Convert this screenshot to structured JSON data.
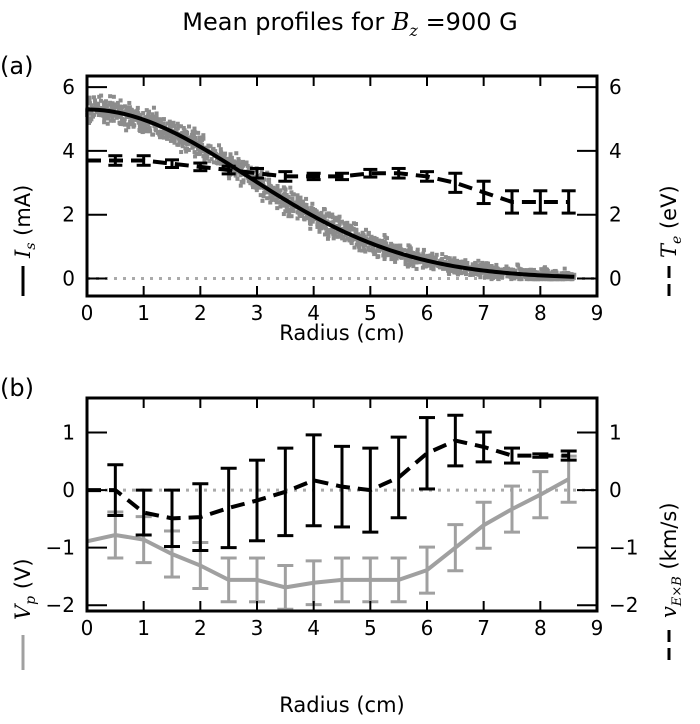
{
  "title": "Mean profiles for B_z = 900 G",
  "title_parts": {
    "prefix": "Mean profiles for ",
    "B": "B",
    "sub": "z",
    "suffix": " =900 G"
  },
  "chart_data": [
    {
      "panel_label": "(a)",
      "type": "scatter+line+errorbar",
      "xlabel": "Radius (cm)",
      "xlim": [
        0,
        9
      ],
      "xticks": [
        0,
        1,
        2,
        3,
        4,
        5,
        6,
        7,
        8,
        9
      ],
      "ylabel_left": {
        "sym": "I",
        "sub": "s",
        "unit": " (mA)"
      },
      "ylabel_right": {
        "sym": "T",
        "sub": "e",
        "unit": " (eV)"
      },
      "ylim": [
        -0.55,
        6.35
      ],
      "yticks": [
        0,
        2,
        4,
        6
      ],
      "y2ticks": [
        0,
        2,
        4,
        6
      ],
      "colors": {
        "scatter": "#8c8c8c",
        "fit": "#000000",
        "Te": "#000000",
        "zero": "#aaaaaa"
      },
      "Is_fit": {
        "amplitude": 5.3,
        "width_cm": 4.0,
        "r_max": 8.6
      },
      "Is_scatter": {
        "r_max": 8.6,
        "spread_mA": 0.32,
        "n_points": 1800
      },
      "Te": {
        "x": [
          0,
          0.5,
          1,
          1.5,
          2,
          2.5,
          3,
          3.5,
          4,
          4.5,
          5,
          5.5,
          6,
          6.5,
          7,
          7.5,
          8,
          8.5
        ],
        "y": [
          3.7,
          3.7,
          3.7,
          3.6,
          3.5,
          3.4,
          3.3,
          3.2,
          3.2,
          3.2,
          3.3,
          3.3,
          3.2,
          3.0,
          2.7,
          2.4,
          2.4,
          2.4
        ],
        "err": [
          0,
          0.15,
          0.15,
          0.12,
          0.12,
          0.12,
          0.15,
          0.15,
          0.1,
          0.1,
          0.12,
          0.15,
          0.15,
          0.3,
          0.35,
          0.35,
          0.35,
          0.35
        ]
      }
    },
    {
      "panel_label": "(b)",
      "type": "line+errorbar",
      "xlabel": "Radius (cm)",
      "xlim": [
        0,
        9
      ],
      "xticks": [
        0,
        1,
        2,
        3,
        4,
        5,
        6,
        7,
        8,
        9
      ],
      "ylabel_left": {
        "sym": "V",
        "sub": "p",
        "unit": " (V)"
      },
      "ylabel_right": {
        "sym": "v",
        "sub": "E×B",
        "unit": " (km/s)"
      },
      "ylim": [
        -2.1,
        1.6
      ],
      "yticks": [
        1,
        0,
        -1,
        -2
      ],
      "y2ticks": [
        1,
        0,
        -1,
        -2
      ],
      "colors": {
        "Vp": "#a0a0a0",
        "vExB": "#000000",
        "zero": "#aaaaaa"
      },
      "Vp": {
        "x": [
          0,
          0.5,
          1,
          1.5,
          2,
          2.5,
          3,
          3.5,
          4,
          4.5,
          5,
          5.5,
          6,
          6.5,
          7,
          7.5,
          8,
          8.5
        ],
        "y": [
          -0.89,
          -0.78,
          -0.86,
          -1.11,
          -1.31,
          -1.56,
          -1.56,
          -1.69,
          -1.61,
          -1.56,
          -1.56,
          -1.56,
          -1.39,
          -1.0,
          -0.61,
          -0.33,
          -0.08,
          0.19
        ],
        "err": [
          0,
          0.4,
          0.4,
          0.4,
          0.4,
          0.38,
          0.38,
          0.38,
          0.38,
          0.38,
          0.38,
          0.38,
          0.4,
          0.4,
          0.4,
          0.4,
          0.4,
          0.4
        ]
      },
      "vExB": {
        "x": [
          0,
          0.5,
          1,
          1.5,
          2,
          2.5,
          3,
          3.5,
          4,
          4.5,
          5,
          5.5,
          6,
          6.5,
          7,
          7.5,
          8,
          8.5
        ],
        "y": [
          0,
          0.0,
          -0.39,
          -0.49,
          -0.47,
          -0.31,
          -0.18,
          -0.03,
          0.17,
          0.06,
          0.0,
          0.22,
          0.64,
          0.86,
          0.75,
          0.6,
          0.6,
          0.6
        ],
        "err": [
          0,
          0.44,
          0.39,
          0.49,
          0.58,
          0.69,
          0.7,
          0.76,
          0.79,
          0.7,
          0.73,
          0.7,
          0.62,
          0.44,
          0.26,
          0.13,
          0.03,
          0.08
        ]
      }
    }
  ]
}
